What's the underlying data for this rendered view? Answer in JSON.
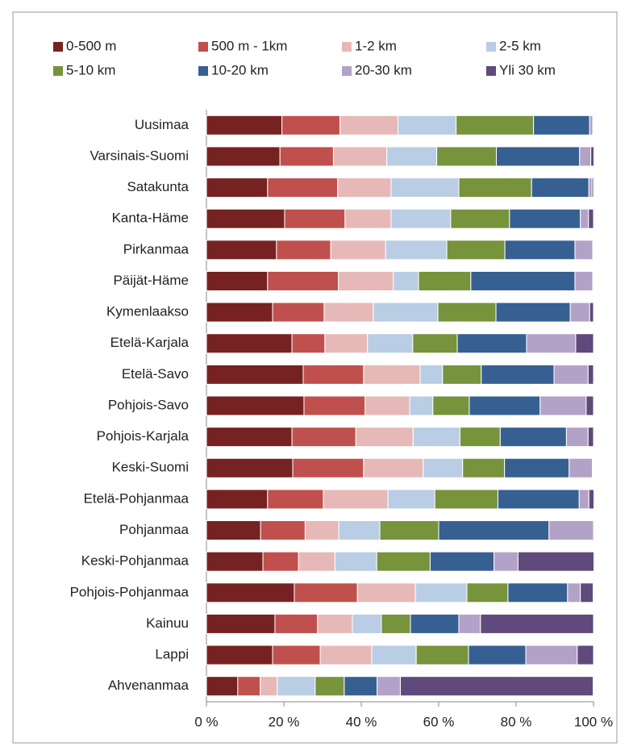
{
  "chart_data": {
    "type": "stacked-bar-horizontal",
    "categories": [
      "Uusimaa",
      "Varsinais-Suomi",
      "Satakunta",
      "Kanta-Häme",
      "Pirkanmaa",
      "Päijät-Häme",
      "Kymenlaakso",
      "Etelä-Karjala",
      "Etelä-Savo",
      "Pohjois-Savo",
      "Pohjois-Karjala",
      "Keski-Suomi",
      "Etelä-Pohjanmaa",
      "Pohjanmaa",
      "Keski-Pohjanmaa",
      "Pohjois-Pohjanmaa",
      "Kainuu",
      "Lappi",
      "Ahvenanmaa"
    ],
    "series": [
      {
        "name": "0-500 m",
        "color": "#772222",
        "values": [
          19.5,
          19,
          15.8,
          20.2,
          18.1,
          15.8,
          17.1,
          22.1,
          25,
          25.2,
          22.1,
          22.3,
          15.8,
          14,
          14.6,
          22.7,
          17.7,
          17.1,
          8.1
        ]
      },
      {
        "name": "500 m - 1km",
        "color": "#c0504d",
        "values": [
          15,
          13.8,
          18.1,
          15.6,
          14,
          18.3,
          13.3,
          8.5,
          15.6,
          15.8,
          16.5,
          18.3,
          14.4,
          11.5,
          9.2,
          16.3,
          11,
          12.3,
          5.8
        ]
      },
      {
        "name": "1-2 km",
        "color": "#e6b9b8",
        "values": [
          15,
          13.8,
          13.8,
          11.9,
          14.2,
          14.2,
          12.7,
          11,
          14.6,
          11.5,
          14.8,
          15.4,
          16.7,
          8.7,
          9.4,
          15,
          9,
          13.3,
          4.4
        ]
      },
      {
        "name": "2-5 km",
        "color": "#b9cde5",
        "values": [
          15,
          12.9,
          17.5,
          15.4,
          15.8,
          6.5,
          16.7,
          11.7,
          5.8,
          6,
          12.1,
          10.2,
          12.1,
          10.6,
          10.8,
          13.3,
          7.5,
          11.5,
          9.8
        ]
      },
      {
        "name": "5-10 km",
        "color": "#77933c",
        "values": [
          20,
          15.4,
          18.8,
          15.2,
          15,
          13.5,
          15,
          11.5,
          10,
          9.4,
          10.4,
          10.8,
          16.3,
          15.2,
          13.8,
          10.6,
          7.5,
          13.5,
          7.5
        ]
      },
      {
        "name": "10-20  km",
        "color": "#376092",
        "values": [
          14.5,
          21.5,
          14.8,
          18.3,
          18.1,
          26.9,
          19.2,
          17.9,
          18.8,
          18.3,
          17.1,
          16.7,
          21,
          28.5,
          16.5,
          15.4,
          12.5,
          14.8,
          8.5
        ]
      },
      {
        "name": "20-30 km",
        "color": "#b3a2c7",
        "values": [
          0.8,
          2.9,
          0.8,
          2.1,
          4.6,
          4.6,
          5,
          12.7,
          8.8,
          11.9,
          5.6,
          6,
          2.5,
          11.5,
          6.2,
          3.3,
          5.6,
          13.3,
          6
        ]
      },
      {
        "name": "Yli 30 km",
        "color": "#604a7b",
        "values": [
          0.2,
          0.8,
          0.4,
          1.3,
          0.2,
          0.2,
          1,
          4.6,
          1.4,
          1.9,
          1.4,
          0.2,
          1.3,
          0,
          19.6,
          3.3,
          29.2,
          4.2,
          49.8
        ]
      }
    ],
    "xlim": [
      0,
      100
    ],
    "xticks": [
      {
        "value": 0,
        "label": "0 %"
      },
      {
        "value": 20,
        "label": "20 %"
      },
      {
        "value": 40,
        "label": "40 %"
      },
      {
        "value": 60,
        "label": "60 %"
      },
      {
        "value": 80,
        "label": "80 %"
      },
      {
        "value": 100,
        "label": "100 %"
      }
    ],
    "legend": "top"
  }
}
